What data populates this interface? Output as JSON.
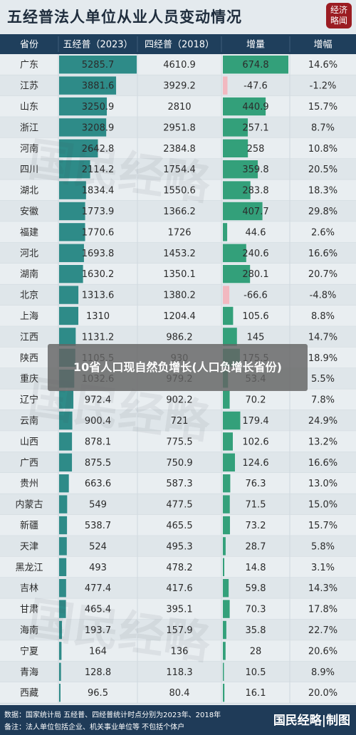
{
  "title": "五经普法人单位从业人员变动情况",
  "logo": {
    "line1": "经济",
    "line2": "略闻"
  },
  "overlay_text": "10省人口现自然负增长(人口负增长省份)",
  "watermark_text": "国民经略",
  "footer": {
    "note1": "数据：国家统计局  五经普、四经普统计时点分别为2023年、2018年",
    "note2": "备注：法人单位包括企业、机关事业单位等 不包括个体户",
    "brand": "国民经略|制图"
  },
  "colors": {
    "header_bg": "#1f3f5c",
    "bar_2023": "#2e8b88",
    "bar_increase": "#33a07a",
    "bar_decrease": "#f2b8c0",
    "row_even": "#dfe6ea",
    "row_odd": "#e9eef1"
  },
  "chart_data": {
    "type": "table",
    "columns": [
      "省份",
      "五经普（2023）",
      "四经普（2018）",
      "增量",
      "增幅"
    ],
    "rows": [
      [
        "广东",
        5285.7,
        4610.9,
        674.8,
        "14.6%"
      ],
      [
        "江苏",
        3881.6,
        3929.2,
        -47.6,
        "-1.2%"
      ],
      [
        "山东",
        3250.9,
        2810,
        440.9,
        "15.7%"
      ],
      [
        "浙江",
        3208.9,
        2951.8,
        257.1,
        "8.7%"
      ],
      [
        "河南",
        2642.8,
        2384.8,
        258,
        "10.8%"
      ],
      [
        "四川",
        2114.2,
        1754.4,
        359.8,
        "20.5%"
      ],
      [
        "湖北",
        1834.4,
        1550.6,
        283.8,
        "18.3%"
      ],
      [
        "安徽",
        1773.9,
        1366.2,
        407.7,
        "29.8%"
      ],
      [
        "福建",
        1770.6,
        1726,
        44.6,
        "2.6%"
      ],
      [
        "河北",
        1693.8,
        1453.2,
        240.6,
        "16.6%"
      ],
      [
        "湖南",
        1630.2,
        1350.1,
        280.1,
        "20.7%"
      ],
      [
        "北京",
        1313.6,
        1380.2,
        -66.6,
        "-4.8%"
      ],
      [
        "上海",
        1310,
        1204.4,
        105.6,
        "8.8%"
      ],
      [
        "江西",
        1131.2,
        986.2,
        145,
        "14.7%"
      ],
      [
        "陕西",
        1105.5,
        930,
        175.5,
        "18.9%"
      ],
      [
        "重庆",
        1032.6,
        979.2,
        53.4,
        "5.5%"
      ],
      [
        "辽宁",
        972.4,
        902.2,
        70.2,
        "7.8%"
      ],
      [
        "云南",
        900.4,
        721,
        179.4,
        "24.9%"
      ],
      [
        "山西",
        878.1,
        775.5,
        102.6,
        "13.2%"
      ],
      [
        "广西",
        875.5,
        750.9,
        124.6,
        "16.6%"
      ],
      [
        "贵州",
        663.6,
        587.3,
        76.3,
        "13.0%"
      ],
      [
        "内蒙古",
        549,
        477.5,
        71.5,
        "15.0%"
      ],
      [
        "新疆",
        538.7,
        465.5,
        73.2,
        "15.7%"
      ],
      [
        "天津",
        524,
        495.3,
        28.7,
        "5.8%"
      ],
      [
        "黑龙江",
        493,
        478.2,
        14.8,
        "3.1%"
      ],
      [
        "吉林",
        477.4,
        417.6,
        59.8,
        "14.3%"
      ],
      [
        "甘肃",
        465.4,
        395.1,
        70.3,
        "17.8%"
      ],
      [
        "海南",
        193.7,
        157.9,
        35.8,
        "22.7%"
      ],
      [
        "宁夏",
        164,
        136,
        28,
        "20.6%"
      ],
      [
        "青海",
        128.8,
        118.3,
        10.5,
        "8.9%"
      ],
      [
        "西藏",
        96.5,
        80.4,
        16.1,
        "20.0%"
      ]
    ]
  }
}
